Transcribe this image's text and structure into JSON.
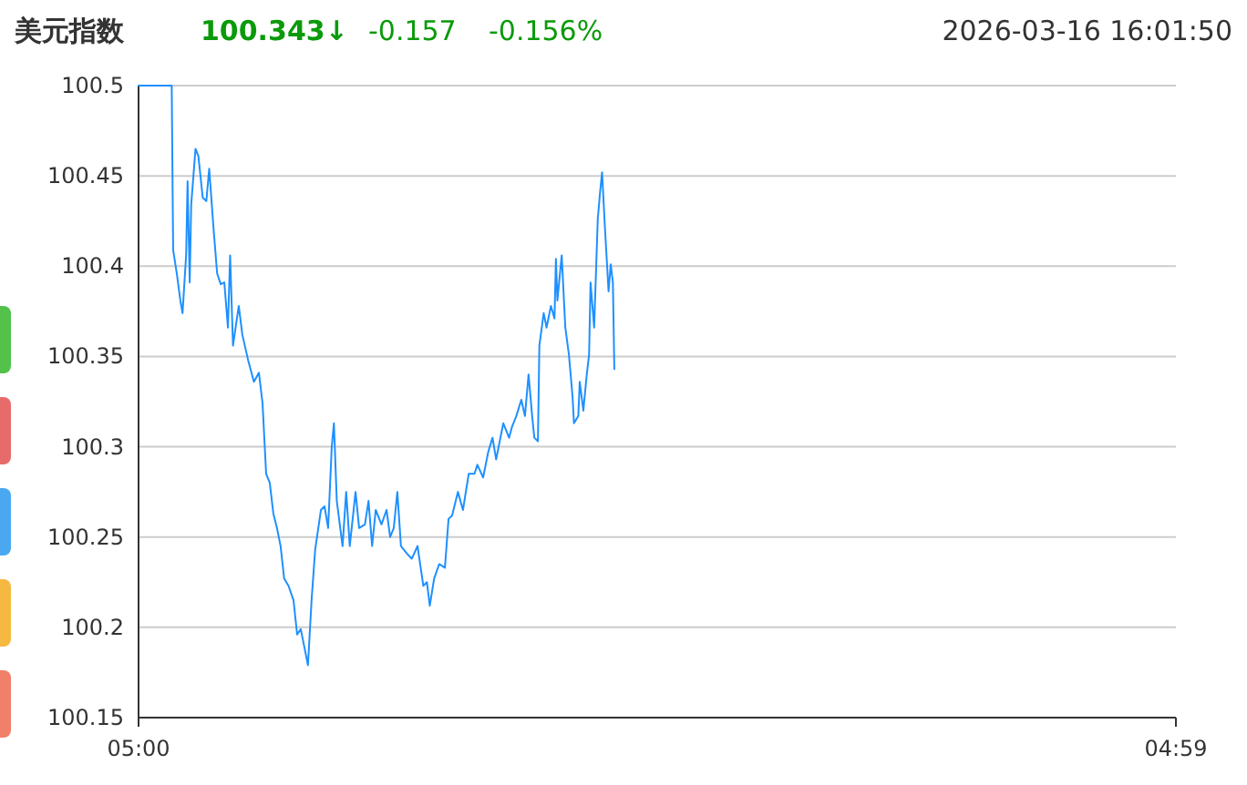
{
  "chart_data": {
    "type": "line",
    "title": "美元指数",
    "annotations": [
      "100.343↓",
      "-0.157",
      "-0.156%",
      "2026-03-16 16:01:50"
    ],
    "xlim": [
      "2026-03-16T05:00",
      "2026-03-17T04:59"
    ],
    "xticks": [
      {
        "value": "2026-03-16T05:00",
        "label": "05:00"
      },
      {
        "value": "2026-03-17T04:59",
        "label": "04:59"
      }
    ],
    "ylim": [
      100.15,
      100.5
    ],
    "yticks": [
      100.15,
      100.2,
      100.25,
      100.3,
      100.35,
      100.4,
      100.45,
      100.5
    ],
    "grid": "y",
    "marker": "none",
    "line_style": "solid",
    "series": [
      {
        "color": "#1e90ff",
        "x": [
          "2026-03-16T05:00",
          "2026-03-16T05:46",
          "2026-03-16T05:48",
          "2026-03-16T05:53",
          "2026-03-16T05:58",
          "2026-03-16T06:01",
          "2026-03-16T06:06",
          "2026-03-16T06:08",
          "2026-03-16T06:11",
          "2026-03-16T06:13",
          "2026-03-16T06:19",
          "2026-03-16T06:23",
          "2026-03-16T06:29",
          "2026-03-16T06:34",
          "2026-03-16T06:38",
          "2026-03-16T06:44",
          "2026-03-16T06:49",
          "2026-03-16T06:54",
          "2026-03-16T06:59",
          "2026-03-16T07:04",
          "2026-03-16T07:07",
          "2026-03-16T07:11",
          "2026-03-16T07:19",
          "2026-03-16T07:24",
          "2026-03-16T07:32",
          "2026-03-16T07:40",
          "2026-03-16T07:47",
          "2026-03-16T07:52",
          "2026-03-16T07:57",
          "2026-03-16T08:02",
          "2026-03-16T08:07",
          "2026-03-16T08:12",
          "2026-03-16T08:17",
          "2026-03-16T08:22",
          "2026-03-16T08:28",
          "2026-03-16T08:35",
          "2026-03-16T08:40",
          "2026-03-16T08:45",
          "2026-03-16T08:50",
          "2026-03-16T08:55",
          "2026-03-16T09:00",
          "2026-03-16T09:05",
          "2026-03-16T09:13",
          "2026-03-16T09:18",
          "2026-03-16T09:23",
          "2026-03-16T09:28",
          "2026-03-16T09:31",
          "2026-03-16T09:35",
          "2026-03-16T09:43",
          "2026-03-16T09:48",
          "2026-03-16T09:53",
          "2026-03-16T10:01",
          "2026-03-16T10:06",
          "2026-03-16T10:14",
          "2026-03-16T10:19",
          "2026-03-16T10:24",
          "2026-03-16T10:29",
          "2026-03-16T10:37",
          "2026-03-16T10:44",
          "2026-03-16T10:49",
          "2026-03-16T10:54",
          "2026-03-16T10:59",
          "2026-03-16T11:04",
          "2026-03-16T11:12",
          "2026-03-16T11:19",
          "2026-03-16T11:27",
          "2026-03-16T11:35",
          "2026-03-16T11:40",
          "2026-03-16T11:44",
          "2026-03-16T11:50",
          "2026-03-16T11:57",
          "2026-03-16T12:05",
          "2026-03-16T12:10",
          "2026-03-16T12:15",
          "2026-03-16T12:23",
          "2026-03-16T12:30",
          "2026-03-16T12:38",
          "2026-03-16T12:46",
          "2026-03-16T12:50",
          "2026-03-16T12:58",
          "2026-03-16T13:05",
          "2026-03-16T13:11",
          "2026-03-16T13:16",
          "2026-03-16T13:21",
          "2026-03-16T13:26",
          "2026-03-16T13:34",
          "2026-03-16T13:38",
          "2026-03-16T13:44",
          "2026-03-16T13:51",
          "2026-03-16T13:56",
          "2026-03-16T14:01",
          "2026-03-16T14:06",
          "2026-03-16T14:09",
          "2026-03-16T14:14",
          "2026-03-16T14:16",
          "2026-03-16T14:22",
          "2026-03-16T14:26",
          "2026-03-16T14:32",
          "2026-03-16T14:37",
          "2026-03-16T14:39",
          "2026-03-16T14:41",
          "2026-03-16T14:47",
          "2026-03-16T14:52",
          "2026-03-16T14:57",
          "2026-03-16T15:02",
          "2026-03-16T15:04",
          "2026-03-16T15:10",
          "2026-03-16T15:12",
          "2026-03-16T15:17",
          "2026-03-16T15:22",
          "2026-03-16T15:25",
          "2026-03-16T15:27",
          "2026-03-16T15:32",
          "2026-03-16T15:37",
          "2026-03-16T15:40",
          "2026-03-16T15:43",
          "2026-03-16T15:47",
          "2026-03-16T15:52",
          "2026-03-16T15:55",
          "2026-03-16T15:58",
          "2026-03-16T16:00"
        ],
        "values": [
          100.5,
          100.5,
          100.409,
          100.396,
          100.381,
          100.374,
          100.406,
          100.447,
          100.391,
          100.434,
          100.465,
          100.461,
          100.438,
          100.436,
          100.454,
          100.421,
          100.396,
          100.39,
          100.391,
          100.366,
          100.406,
          100.356,
          100.378,
          100.362,
          100.348,
          100.336,
          100.341,
          100.324,
          100.285,
          100.28,
          100.263,
          100.255,
          100.245,
          100.227,
          100.223,
          100.215,
          100.196,
          100.199,
          100.189,
          100.179,
          100.215,
          100.243,
          100.265,
          100.267,
          100.255,
          100.3,
          100.313,
          100.27,
          100.245,
          100.275,
          100.245,
          100.275,
          100.255,
          100.257,
          100.27,
          100.245,
          100.265,
          100.257,
          100.265,
          100.25,
          100.255,
          100.275,
          100.245,
          100.241,
          100.238,
          100.245,
          100.223,
          100.225,
          100.212,
          100.227,
          100.235,
          100.233,
          100.26,
          100.262,
          100.275,
          100.265,
          100.285,
          100.285,
          100.29,
          100.283,
          100.297,
          100.305,
          100.293,
          100.303,
          100.313,
          100.305,
          100.311,
          100.317,
          100.326,
          100.317,
          100.34,
          100.317,
          100.305,
          100.303,
          100.356,
          100.374,
          100.366,
          100.378,
          100.371,
          100.404,
          100.381,
          100.406,
          100.366,
          100.351,
          100.328,
          100.313,
          100.317,
          100.336,
          100.32,
          100.341,
          100.351,
          100.391,
          100.366,
          100.426,
          100.44,
          100.452,
          100.421,
          100.386,
          100.401,
          100.391,
          100.343
        ]
      }
    ]
  }
}
